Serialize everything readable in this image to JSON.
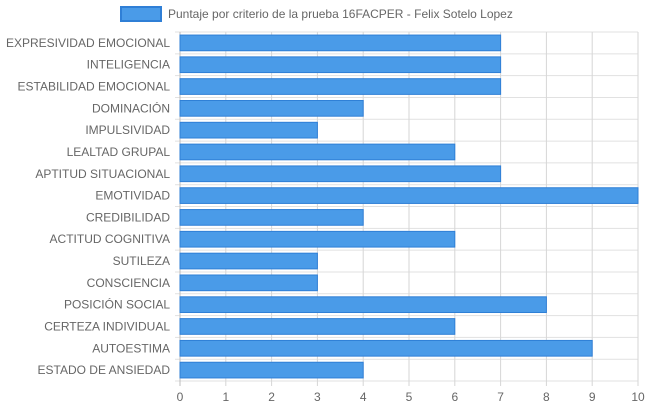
{
  "chart_data": {
    "type": "bar",
    "orientation": "horizontal",
    "categories": [
      "EXPRESIVIDAD EMOCIONAL",
      "INTELIGENCIA",
      "ESTABILIDAD EMOCIONAL",
      "DOMINACIÓN",
      "IMPULSIVIDAD",
      "LEALTAD GRUPAL",
      "APTITUD SITUACIONAL",
      "EMOTIVIDAD",
      "CREDIBILIDAD",
      "ACTITUD COGNITIVA",
      "SUTILEZA",
      "CONSCIENCIA",
      "POSICIÓN SOCIAL",
      "CERTEZA INDIVIDUAL",
      "AUTOESTIMA",
      "ESTADO DE ANSIEDAD"
    ],
    "series": [
      {
        "name": "Puntaje por criterio de la prueba 16FACPER - Felix Sotelo Lopez",
        "values": [
          7,
          7,
          7,
          4,
          3,
          6,
          7,
          10,
          4,
          6,
          3,
          3,
          8,
          6,
          9,
          4
        ],
        "color": "#4a9be8",
        "border_color": "#2f7fd6"
      }
    ],
    "x_ticks": [
      "0",
      "1",
      "2",
      "3",
      "4",
      "5",
      "6",
      "7",
      "8",
      "9",
      "10"
    ],
    "xlim": [
      0,
      10
    ],
    "grid": true,
    "legend_position": "top-center"
  }
}
